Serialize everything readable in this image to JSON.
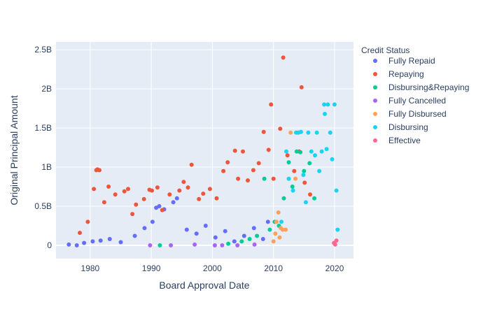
{
  "chart_data": {
    "type": "scatter",
    "title": "",
    "xlabel": "Board Approval Date",
    "ylabel": "Original Principal Amount",
    "xlim": [
      1974.4,
      2023.1
    ],
    "ylim": [
      -0.17,
      2.6
    ],
    "y_unit": "billions",
    "x_ticks": [
      {
        "value": 1980,
        "label": "1980"
      },
      {
        "value": 1990,
        "label": "1990"
      },
      {
        "value": 2000,
        "label": "2000"
      },
      {
        "value": 2010,
        "label": "2010"
      },
      {
        "value": 2020,
        "label": "2020"
      }
    ],
    "y_ticks": [
      {
        "value": 0,
        "label": "0"
      },
      {
        "value": 0.5,
        "label": "0.5B"
      },
      {
        "value": 1,
        "label": "1B"
      },
      {
        "value": 1.5,
        "label": "1.5B"
      },
      {
        "value": 2,
        "label": "2B"
      },
      {
        "value": 2.5,
        "label": "2.5B"
      }
    ],
    "grid": true,
    "legend_title": "Credit Status",
    "legend_placement": "right",
    "series": [
      {
        "name": "Fully Repaid",
        "color": "#636efa",
        "x": [
          1976.5,
          1977.8,
          1979.0,
          1980.4,
          1981.7,
          1983.2,
          1985.0,
          1987.3,
          1988.9,
          1990.2,
          1990.8,
          1991.3,
          1992.1,
          1993.6,
          1994.2,
          1995.8,
          1997.4,
          1998.9,
          2000.5,
          2002.1,
          2003.6,
          2005.2,
          2006.8,
          2008.3,
          2009.1
        ],
        "y": [
          0.01,
          0.0,
          0.03,
          0.05,
          0.06,
          0.08,
          0.04,
          0.12,
          0.22,
          0.3,
          0.48,
          0.5,
          0.46,
          0.55,
          0.6,
          0.2,
          0.15,
          0.25,
          0.1,
          0.18,
          0.05,
          0.12,
          0.22,
          0.08,
          0.3
        ]
      },
      {
        "name": "Repaying",
        "color": "#ef553b",
        "x": [
          1978.3,
          1979.6,
          1980.6,
          1981.0,
          1981.2,
          1981.5,
          1982.3,
          1983.0,
          1984.1,
          1985.6,
          1986.2,
          1986.9,
          1987.5,
          1988.8,
          1989.7,
          1990.1,
          1991.0,
          1991.8,
          1993.0,
          1994.6,
          1995.3,
          1996.0,
          1996.6,
          1997.8,
          1998.5,
          1999.6,
          2000.7,
          2001.8,
          2002.5,
          2003.7,
          2004.2,
          2005.0,
          2005.8,
          2006.7,
          2007.6,
          2008.4,
          2009.2,
          2009.6,
          2010.0,
          2011.1,
          2011.6,
          2012.3,
          2013.4,
          2014.2,
          2014.6,
          2015.1,
          2016.0
        ],
        "y": [
          0.16,
          0.3,
          0.72,
          0.96,
          0.97,
          0.96,
          0.55,
          0.75,
          0.65,
          0.69,
          0.72,
          0.4,
          0.52,
          0.59,
          0.71,
          0.7,
          0.74,
          0.45,
          0.65,
          0.7,
          0.81,
          0.74,
          1.03,
          0.59,
          0.66,
          0.72,
          0.6,
          0.95,
          1.06,
          1.21,
          0.85,
          1.2,
          0.83,
          0.96,
          1.05,
          1.45,
          1.22,
          1.8,
          0.85,
          1.49,
          2.4,
          1.15,
          0.95,
          1.2,
          2.02,
          0.8,
          0.65
        ]
      },
      {
        "name": "Disbursing&Repaying",
        "color": "#00cc96",
        "x": [
          1991.4,
          2002.6,
          2004.8,
          2006.1,
          2007.3,
          2008.5,
          2009.4,
          2010.2,
          2010.9,
          2011.7,
          2012.5,
          2013.1,
          2013.8,
          2014.4,
          2015.0,
          2015.9,
          2016.7
        ],
        "y": [
          0.0,
          0.02,
          0.05,
          0.08,
          0.12,
          0.85,
          0.2,
          0.3,
          0.25,
          0.6,
          1.06,
          0.75,
          1.2,
          1.19,
          0.95,
          1.05,
          0.6
        ]
      },
      {
        "name": "Fully Cancelled",
        "color": "#ab63fa",
        "x": [
          1989.8,
          1993.2,
          1997.1,
          2000.4,
          2001.6,
          2004.1,
          2006.9
        ],
        "y": [
          0.0,
          0.0,
          0.01,
          0.0,
          0.0,
          0.0,
          0.01
        ]
      },
      {
        "name": "Fully Disbursed",
        "color": "#ffa15a",
        "x": [
          2010.0,
          2010.3,
          2010.5,
          2010.8,
          2011.0,
          2011.2,
          2011.5,
          2012.0,
          2012.8,
          2013.6,
          2014.1
        ],
        "y": [
          0.05,
          0.15,
          0.3,
          0.42,
          0.1,
          0.22,
          0.2,
          0.2,
          1.44,
          0.85,
          1.44
        ]
      },
      {
        "name": "Disbursing",
        "color": "#19d3f3",
        "x": [
          2011.3,
          2012.1,
          2012.5,
          2013.2,
          2013.7,
          2014.0,
          2014.5,
          2014.9,
          2015.3,
          2015.7,
          2016.2,
          2016.8,
          2017.1,
          2017.5,
          2017.9,
          2018.3,
          2018.4,
          2018.7,
          2018.9,
          2019.3,
          2019.6,
          2020.0,
          2020.3,
          2020.5
        ],
        "y": [
          0.3,
          1.2,
          0.85,
          0.7,
          1.44,
          1.44,
          1.45,
          0.9,
          0.55,
          1.44,
          1.2,
          1.15,
          1.44,
          0.95,
          1.2,
          1.8,
          1.68,
          1.23,
          1.8,
          1.44,
          1.1,
          1.8,
          0.7,
          0.2
        ]
      },
      {
        "name": "Effective",
        "color": "#ff6692",
        "x": [
          2019.9,
          2020.1,
          2020.3
        ],
        "y": [
          0.03,
          0.01,
          0.06
        ]
      }
    ]
  }
}
